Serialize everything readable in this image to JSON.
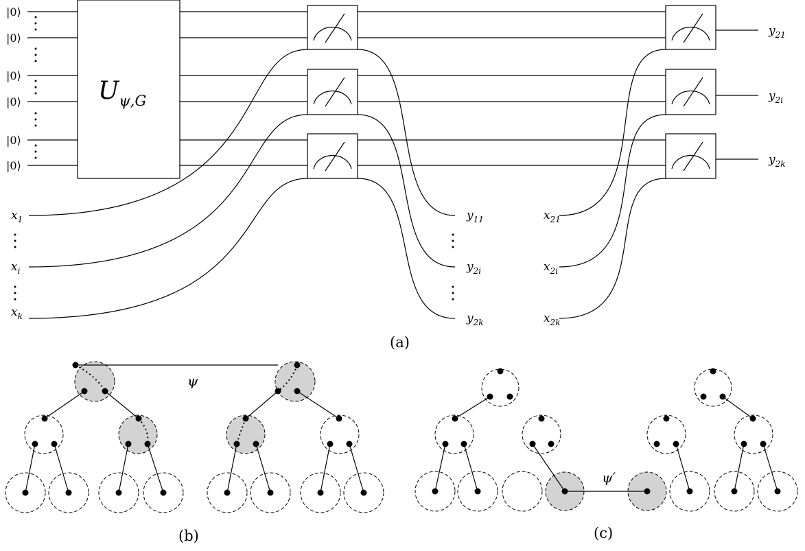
{
  "circuit": {
    "ket_label": "|0⟩",
    "unitary": {
      "base": "U",
      "sub": "ψ,G"
    },
    "x1": {
      "base": "x",
      "sub": "1"
    },
    "xi": {
      "base": "x",
      "sub": "i"
    },
    "xk": {
      "base": "x",
      "sub": "k"
    },
    "y11": {
      "base": "y",
      "sub": "11"
    },
    "y2i_mid": {
      "base": "y",
      "sub": "2i"
    },
    "y2k_mid": {
      "base": "y",
      "sub": "2k"
    },
    "x21": {
      "base": "x",
      "sub": "21"
    },
    "x2i": {
      "base": "x",
      "sub": "2i"
    },
    "x2k": {
      "base": "x",
      "sub": "2k"
    },
    "y21": {
      "base": "y",
      "sub": "21"
    },
    "y2i": {
      "base": "y",
      "sub": "2i"
    },
    "y2k_right": {
      "base": "y",
      "sub": "2k"
    },
    "caption": "(a)"
  },
  "trees_b": {
    "edge_label": "ψ",
    "caption": "(b)"
  },
  "trees_c": {
    "edge_label": "ψ′",
    "caption": "(c)"
  },
  "colors": {
    "shade": "#d3d3d3",
    "ink": "#000000"
  }
}
